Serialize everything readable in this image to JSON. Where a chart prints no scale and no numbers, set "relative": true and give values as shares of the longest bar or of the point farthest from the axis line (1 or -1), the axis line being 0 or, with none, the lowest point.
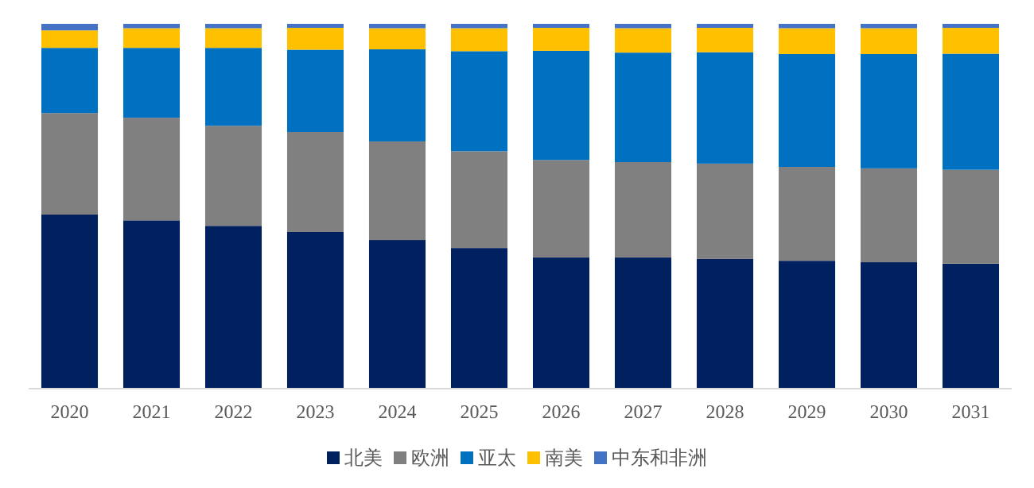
{
  "chart_data": {
    "type": "bar",
    "stacked": true,
    "relative": true,
    "legend": "bottom",
    "categories": [
      "2020",
      "2021",
      "2022",
      "2023",
      "2024",
      "2025",
      "2026",
      "2027",
      "2028",
      "2029",
      "2030",
      "2031"
    ],
    "series": [
      {
        "name": "北美",
        "color": "#002060",
        "values": [
          0.476,
          0.46,
          0.445,
          0.428,
          0.406,
          0.384,
          0.358,
          0.358,
          0.354,
          0.349,
          0.345,
          0.341
        ]
      },
      {
        "name": "欧洲",
        "color": "#808080",
        "values": [
          0.279,
          0.282,
          0.275,
          0.275,
          0.271,
          0.266,
          0.268,
          0.262,
          0.262,
          0.258,
          0.258,
          0.258
        ]
      },
      {
        "name": "亚太",
        "color": "#0070c0",
        "values": [
          0.179,
          0.192,
          0.214,
          0.226,
          0.253,
          0.275,
          0.3,
          0.301,
          0.306,
          0.31,
          0.314,
          0.319
        ]
      },
      {
        "name": "南美",
        "color": "#ffc000",
        "values": [
          0.048,
          0.054,
          0.054,
          0.06,
          0.058,
          0.063,
          0.063,
          0.067,
          0.067,
          0.071,
          0.071,
          0.071
        ]
      },
      {
        "name": "中东和非洲",
        "color": "#4472c4",
        "values": [
          0.018,
          0.012,
          0.012,
          0.011,
          0.012,
          0.012,
          0.011,
          0.012,
          0.011,
          0.012,
          0.012,
          0.011
        ]
      }
    ]
  }
}
